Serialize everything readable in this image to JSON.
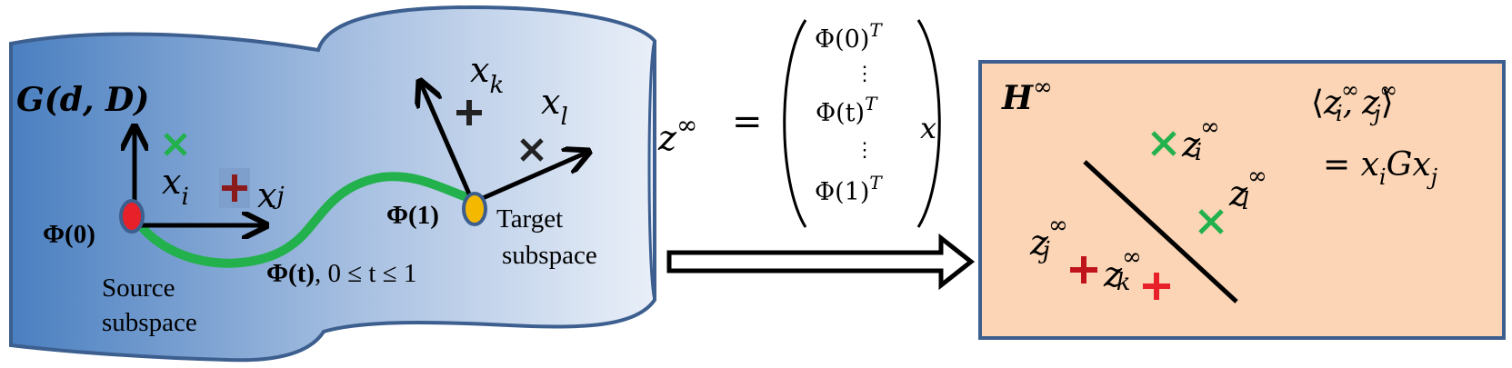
{
  "manifold": {
    "label": "G(d, D)",
    "phi0": "Φ(0)",
    "phi1": "Φ(1)",
    "path_label": "Φ(t)",
    "path_range": ", 0 ≤ t ≤ 1",
    "source_label_1": "Source",
    "source_label_2": "subspace",
    "target_label_1": "Target",
    "target_label_2": "subspace",
    "xi": "x",
    "xi_sub": "i",
    "xj": "x",
    "xj_sub": "j",
    "xk": "x",
    "xk_sub": "k",
    "xl": "x",
    "xl_sub": "l"
  },
  "equation": {
    "lhs": "z",
    "lhs_sup": "∞",
    "equals": "=",
    "row1": "Φ(0)",
    "row2": "Φ(t)",
    "row3": "Φ(1)",
    "transpose": "T",
    "vdots": "⋮",
    "rhs": "x"
  },
  "hilbert": {
    "label": "H",
    "label_sup": "∞",
    "zi": "z",
    "zi_sub": "i",
    "zj": "z",
    "zj_sub": "j",
    "zk": "z",
    "zk_sub": "k",
    "zl": "z",
    "zl_sub": "l",
    "sup": "∞",
    "inner_open": "⟨",
    "inner_close": "⟩",
    "inner_comma": ",",
    "kernel": "= x",
    "kernel_i": "i",
    "kernel_g": "Gx",
    "kernel_j": "j"
  },
  "colors": {
    "manifold_dark": "#4a7fc0",
    "manifold_light": "#e6edf7",
    "manifold_border": "#3d5f8f",
    "path": "#22b14c",
    "cross_green": "#22b14c",
    "plus_red": "#c0141c",
    "plus_dark": "#8b1a1a",
    "source_dot": "#e8202a",
    "target_dot": "#f5b800",
    "panel_fill": "#fbd5b5",
    "panel_border": "#3d5f8f"
  }
}
